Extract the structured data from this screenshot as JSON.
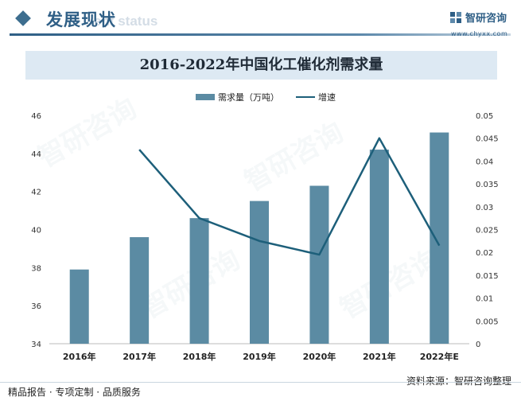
{
  "header": {
    "section_title": "发展现状",
    "section_subtitle": "ent status",
    "brand_name": "智研咨询",
    "brand_site": "www.chyxx.com"
  },
  "watermark": "智研咨询",
  "chart_data": {
    "type": "bar",
    "title": "2016-2022年中国化工催化剂需求量",
    "categories": [
      "2016年",
      "2017年",
      "2018年",
      "2019年",
      "2020年",
      "2021年",
      "2022年E"
    ],
    "series": [
      {
        "name": "需求量（万吨）",
        "type": "bar",
        "axis": "left",
        "values": [
          37.9,
          39.6,
          40.6,
          41.5,
          42.3,
          44.2,
          45.1
        ]
      },
      {
        "name": "增速",
        "type": "line",
        "axis": "right",
        "values": [
          null,
          0.0425,
          0.0275,
          0.0225,
          0.0195,
          0.045,
          0.0215
        ]
      }
    ],
    "y_left": {
      "min": 34,
      "max": 46,
      "ticks": [
        "34",
        "36",
        "38",
        "40",
        "42",
        "44",
        "46"
      ]
    },
    "y_right": {
      "min": 0,
      "max": 0.05,
      "ticks": [
        "0",
        "0.005",
        "0.01",
        "0.015",
        "0.02",
        "0.025",
        "0.03",
        "0.035",
        "0.04",
        "0.045",
        "0.05"
      ]
    },
    "grid": false,
    "legend_position": "top-center",
    "colors": {
      "bar": "#5b8ba3",
      "line": "#1d5f7a"
    }
  },
  "footer": {
    "left": "精品报告 · 专项定制 · 品质服务",
    "right": "资料来源：智研咨询整理"
  }
}
